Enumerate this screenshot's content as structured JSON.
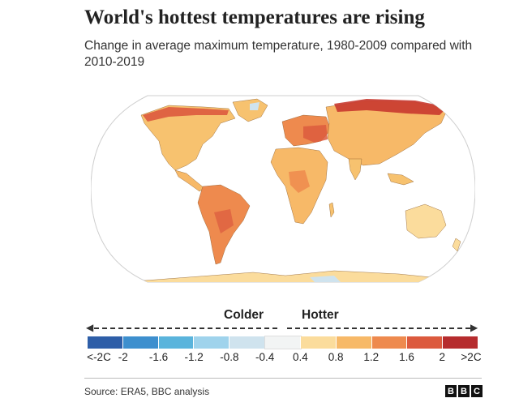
{
  "title": "World's hottest temperatures are rising",
  "subtitle": "Change in average maximum temperature, 1980-2009 compared with 2010-2019",
  "legend": {
    "colder_label": "Colder",
    "hotter_label": "Hotter",
    "colors": [
      "#2e5ea8",
      "#3d8fce",
      "#5ab4dc",
      "#9fd3ec",
      "#cfe3ee",
      "#f2f4f4",
      "#fbdc9c",
      "#f7b968",
      "#ee8a4e",
      "#dc5a3e",
      "#b62c2e"
    ],
    "ticks": [
      "<-2C",
      "-2",
      "-1.6",
      "-1.2",
      "-0.8",
      "-0.4",
      "0.4",
      "0.8",
      "1.2",
      "1.6",
      "2",
      ">2C"
    ]
  },
  "map_fill": {
    "ocean": "#ffffff",
    "land_base": "#f7c26f",
    "hot": "#e8783c",
    "hotter": "#c8392f",
    "cold": "#cfe3ee"
  },
  "footer": {
    "source": "Source: ERA5, BBC analysis",
    "logo_letters": [
      "B",
      "B",
      "C"
    ]
  }
}
